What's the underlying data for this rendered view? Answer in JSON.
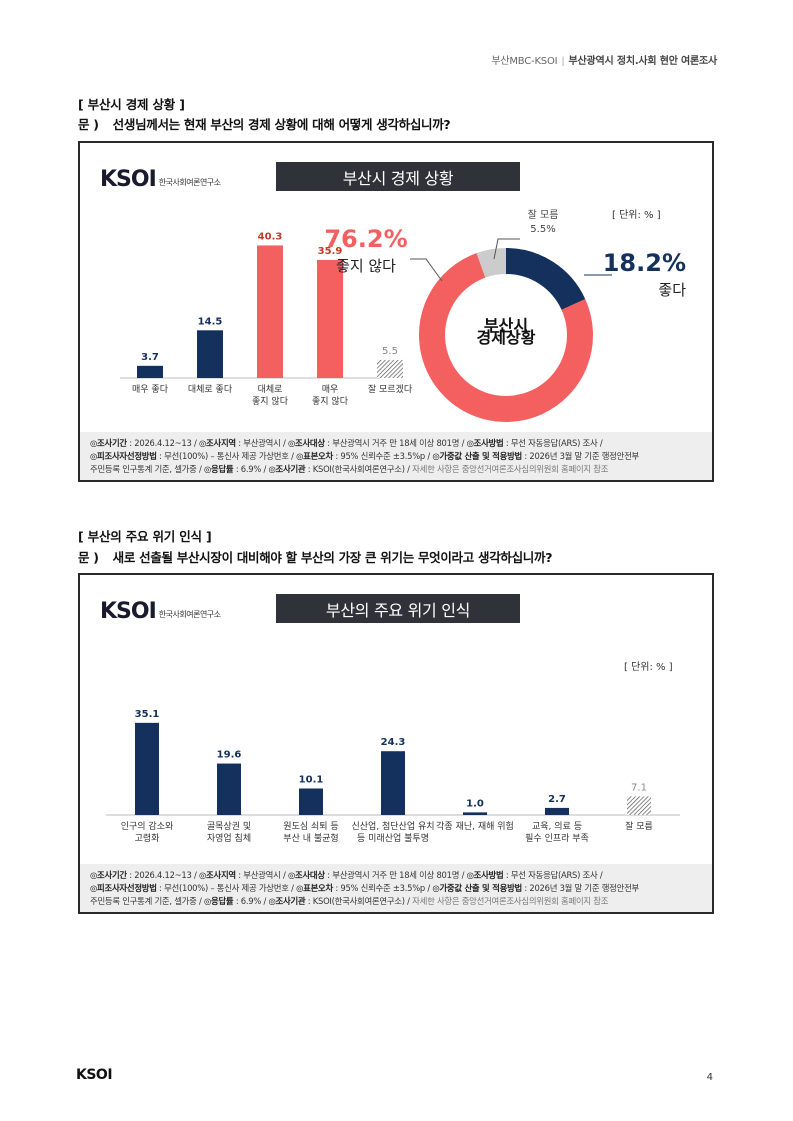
{
  "header": {
    "org": "부산MBC-KSOI",
    "title": "부산광역시 정치.사회 현안 여론조사"
  },
  "sections": [
    {
      "section_title": "[ 부산시 경제 상황 ]",
      "question_prefix": "문 )",
      "question": "선생님께서는 현재 부산의 경제 상황에 대해 어떻게 생각하십니까?"
    },
    {
      "section_title": "[ 부산의 주요 위기 인식 ]",
      "question_prefix": "문 )",
      "question": "새로 선출될 부산시장이 대비해야 할 부산의 가장 큰 위기는 무엇이라고 생각하십니까?"
    }
  ],
  "logo": {
    "mark": "KSOI",
    "org_name": "한국사회여론연구소"
  },
  "unit": "[ 단위: % ]",
  "footnote": {
    "line1": [
      {
        "label": "◎조사기간",
        "text": " : 2026.4.12~13 / "
      },
      {
        "label": "◎조사지역",
        "text": " : 부산광역시 / "
      },
      {
        "label": "◎조사대상",
        "text": " : 부산광역시 거주 만 18세 이상 801명 / "
      },
      {
        "label": "◎조사방법",
        "text": " : 무선 자동응답(ARS) 조사 /"
      }
    ],
    "line2": [
      {
        "label": "◎피조사자선정방법",
        "text": " : 무선(100%) – 통신사 제공 가상번호 / "
      },
      {
        "label": "◎표본오차",
        "text": " : 95% 신뢰수준 ±3.5%p / "
      },
      {
        "label": "◎가중값 산출 및 적용방법",
        "text": " : 2026년 3월 말 기준 행정안전부"
      }
    ],
    "line3_prefix": "주민등록 인구통계 기준, 셀가중 / ",
    "line3": [
      {
        "label": "◎응답률",
        "text": " : 6.9% / "
      },
      {
        "label": "◎조사기관",
        "text": " : KSOI(한국사회여론연구소) / "
      }
    ],
    "line3_dim": "자세한 사항은 중앙선거여론조사심의위원회 홈페이지 참조"
  },
  "chart_data": [
    {
      "type": "bar",
      "title": "부산시 경제 상황",
      "categories": [
        "매우 좋다",
        "대체로 좋다",
        "대체로\n좋지 않다",
        "매우\n좋지 않다",
        "잘 모르겠다"
      ],
      "values": [
        3.7,
        14.5,
        40.3,
        35.9,
        5.5
      ],
      "value_labels": [
        "3.7",
        "14.5",
        "40.3",
        "35.9",
        "5.5"
      ],
      "colors": [
        "#14305c",
        "#14305c",
        "#f46060",
        "#f46060",
        "hatch"
      ],
      "ylim": [
        0,
        45
      ],
      "grid": false
    },
    {
      "type": "pie",
      "title": "부산시 경제 상황",
      "center_label": [
        "부산시",
        "경제상황"
      ],
      "slices": [
        {
          "name": "좋다",
          "value": 18.2,
          "label": "18.2%",
          "color": "#14305c"
        },
        {
          "name": "좋지 않다",
          "value": 76.2,
          "label": "76.2%",
          "color": "#f46060"
        },
        {
          "name": "잘 모름",
          "value": 5.5,
          "label": "5.5%",
          "color": "#cccccc"
        }
      ]
    },
    {
      "type": "bar",
      "title": "부산의 주요 위기 인식",
      "categories": [
        "인구의 감소와\n고령화",
        "골목상권 및\n자영업 침체",
        "원도심 쇠퇴 등\n부산 내 불균형",
        "신산업, 첨단산업 유치\n등 미래산업 불투명",
        "각종 재난, 재해 위험",
        "교육, 의료 등\n필수 인프라 부족",
        "잘 모름"
      ],
      "values": [
        35.1,
        19.6,
        10.1,
        24.3,
        1.0,
        2.7,
        7.1
      ],
      "value_labels": [
        "35.1",
        "19.6",
        "10.1",
        "24.3",
        "1.0",
        "2.7",
        "7.1"
      ],
      "colors": [
        "#14305c",
        "#14305c",
        "#14305c",
        "#14305c",
        "#14305c",
        "#14305c",
        "hatch"
      ],
      "ylim": [
        0,
        40
      ],
      "grid": false
    }
  ],
  "footer": {
    "logo": "KSOI",
    "page_number": "4"
  }
}
